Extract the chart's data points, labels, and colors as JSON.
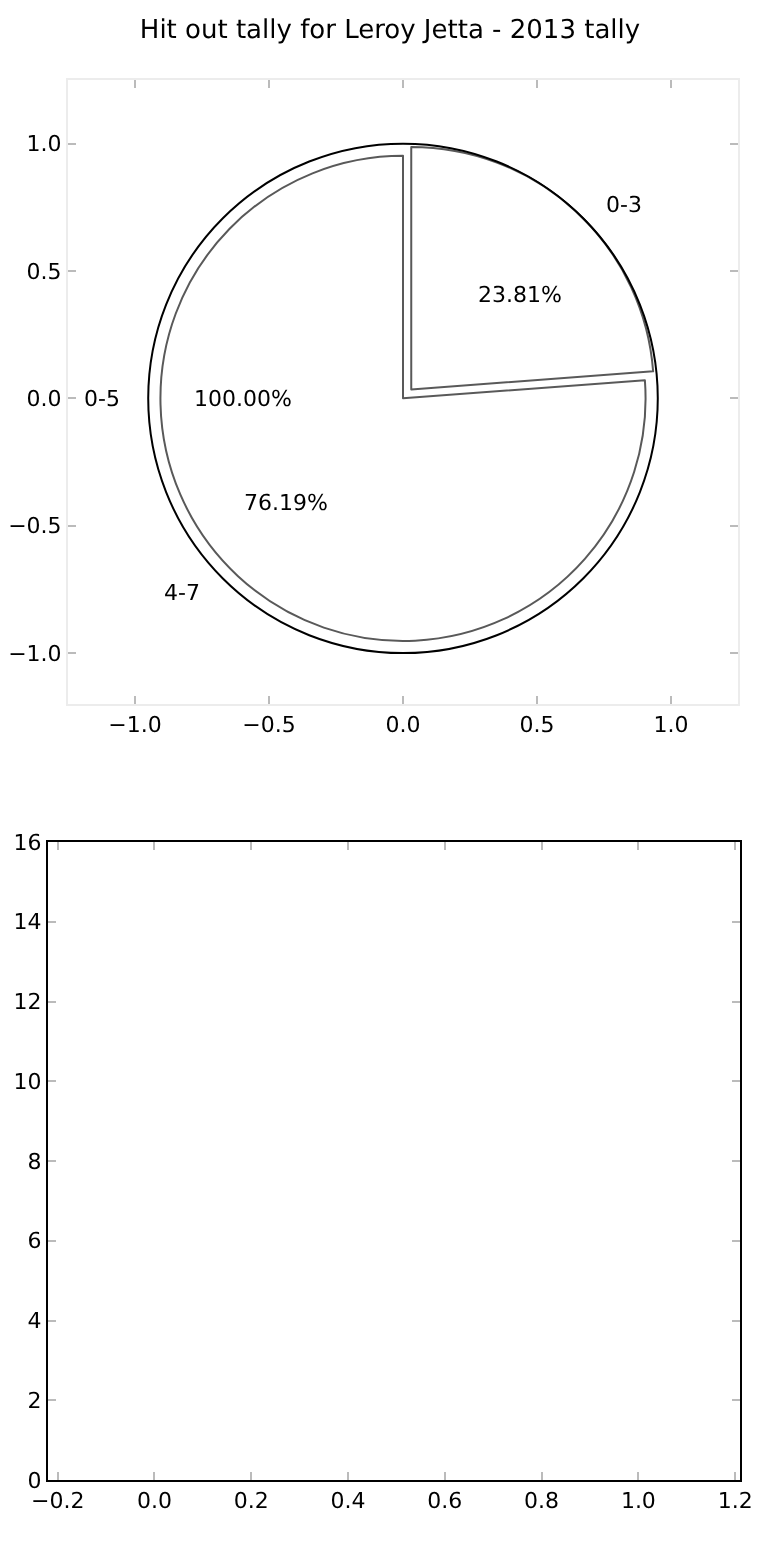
{
  "chart_data": [
    {
      "type": "scatter",
      "title": "Hit out tally for Leroy Jetta - 2013 tally",
      "xlim": [
        -1.25,
        1.25
      ],
      "ylim": [
        -1.2,
        1.25
      ],
      "xticks": [
        {
          "value": -1,
          "label": "−1.0"
        },
        {
          "value": -0.5,
          "label": "−0.5"
        },
        {
          "value": 0,
          "label": "0.0"
        },
        {
          "value": 0.5,
          "label": "0.5"
        },
        {
          "value": 1,
          "label": "1.0"
        }
      ],
      "yticks": [
        {
          "value": -1,
          "label": "−1.0"
        },
        {
          "value": -0.5,
          "label": "−0.5"
        },
        {
          "value": 0,
          "label": "0.0"
        },
        {
          "value": 0.5,
          "label": "0.5"
        },
        {
          "value": 1,
          "label": "1.0"
        }
      ],
      "legend": false
    },
    {
      "type": "pie",
      "categories": [
        "0-3",
        "4-7"
      ],
      "values": [
        23.81,
        76.19
      ],
      "value_labels": [
        "23.81%",
        "76.19%"
      ],
      "colors": [
        "#ffffff",
        "#ffffff"
      ],
      "legend": false
    },
    {
      "type": "pie",
      "categories": [
        "0-5"
      ],
      "values": [
        100.0
      ],
      "value_labels": [
        "100.00%"
      ],
      "colors": [
        "#ffffff"
      ],
      "legend": false
    },
    {
      "type": "scatter",
      "xlim": [
        -0.22,
        1.21
      ],
      "ylim": [
        0,
        16
      ],
      "xticks": [
        {
          "value": -0.2,
          "label": "−0.2"
        },
        {
          "value": 0,
          "label": "0.0"
        },
        {
          "value": 0.2,
          "label": "0.2"
        },
        {
          "value": 0.4,
          "label": "0.4"
        },
        {
          "value": 0.6,
          "label": "0.6"
        },
        {
          "value": 0.8,
          "label": "0.8"
        },
        {
          "value": 1,
          "label": "1.0"
        },
        {
          "value": 1.2,
          "label": "1.2"
        }
      ],
      "yticks": [
        0,
        2,
        4,
        6,
        8,
        10,
        12,
        14,
        16
      ],
      "legend": false
    }
  ]
}
